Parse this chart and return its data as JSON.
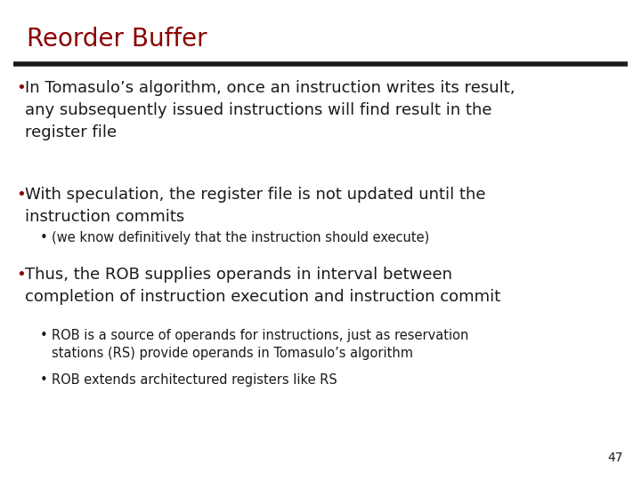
{
  "title": "Reorder Buffer",
  "title_color": "#8B0000",
  "title_fontsize": 20,
  "background_color": "#FFFFFF",
  "separator_color": "#1a1a1a",
  "body_fontsize": 13,
  "sub_fontsize": 10.5,
  "bullet_color": "#8B0000",
  "text_color": "#1a1a1a",
  "page_number": "47",
  "bullet1": "In Tomasulo’s algorithm, once an instruction writes its result,\nany subsequently issued instructions will find result in the\nregister file",
  "bullet2": "With speculation, the register file is not updated until the\ninstruction commits",
  "sub_bullet2": "(we know definitively that the instruction should execute)",
  "bullet3": "Thus, the ROB supplies operands in interval between\ncompletion of instruction execution and instruction commit",
  "sub_bullet3a": "ROB is a source of operands for instructions, just as reservation\nstations (RS) provide operands in Tomasulo’s algorithm",
  "sub_bullet3b": "ROB extends architectured registers like RS"
}
